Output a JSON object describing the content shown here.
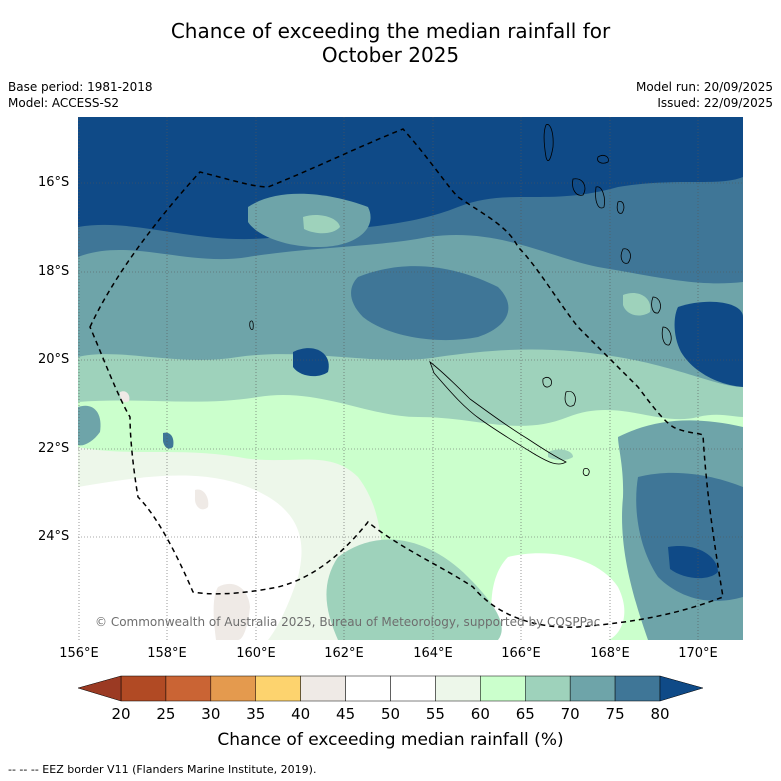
{
  "title_line1": "Chance of exceeding the median rainfall for",
  "title_line2": "October 2025",
  "meta_left": [
    "Base period: 1981-2018",
    "Model: ACCESS-S2"
  ],
  "meta_right": [
    "Model run: 20/09/2025",
    "Issued: 22/09/2025"
  ],
  "lat_labels": [
    "16°S",
    "18°S",
    "20°S",
    "22°S",
    "24°S"
  ],
  "lon_labels": [
    "156°E",
    "158°E",
    "160°E",
    "162°E",
    "164°E",
    "166°E",
    "168°E",
    "170°E"
  ],
  "copyright": "© Commonwealth of Australia 2025, Bureau of Meteorology, supported by COSPPac",
  "colorbar": {
    "ticks": [
      "20",
      "25",
      "30",
      "35",
      "40",
      "45",
      "50",
      "55",
      "60",
      "65",
      "70",
      "75",
      "80"
    ],
    "colors": [
      "#b14a24",
      "#ca6434",
      "#e49a4e",
      "#fdd36e",
      "#efeae6",
      "#ffffff",
      "#ffffff",
      "#edf7ea",
      "#cbffcc",
      "#9ed2bb",
      "#6ea4a9",
      "#3f7697"
    ],
    "under_color": "#9b3a23",
    "over_color": "#0f4a87",
    "label": "Chance of exceeding median rainfall (%)"
  },
  "legend_note": "-- -- -- EEZ border V11 (Flanders Marine Institute, 2019)."
}
